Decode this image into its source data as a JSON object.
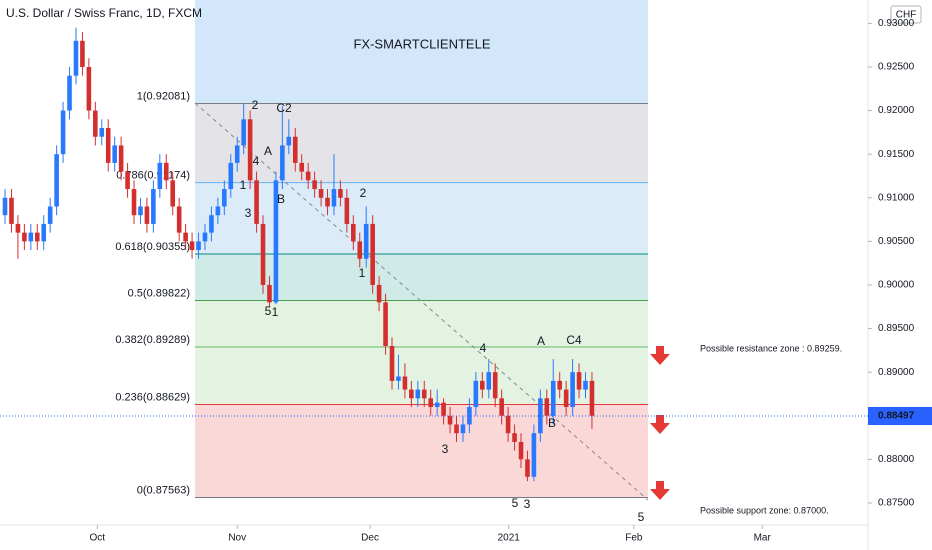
{
  "chart_data": {
    "type": "candlestick",
    "title": "U.S. Dollar / Swiss Franc, 1D, FXCM",
    "watermark": "FX-SMARTCLIENTELE",
    "currency": "CHF",
    "colors": {
      "up": "#2979ff",
      "down": "#d32f2f"
    },
    "candles": [
      [
        0.908,
        0.911,
        0.907,
        0.91
      ],
      [
        0.91,
        0.911,
        0.906,
        0.907
      ],
      [
        0.907,
        0.908,
        0.903,
        0.906
      ],
      [
        0.906,
        0.907,
        0.904,
        0.905
      ],
      [
        0.905,
        0.907,
        0.904,
        0.906
      ],
      [
        0.906,
        0.907,
        0.904,
        0.905
      ],
      [
        0.905,
        0.908,
        0.904,
        0.907
      ],
      [
        0.907,
        0.91,
        0.906,
        0.909
      ],
      [
        0.909,
        0.916,
        0.908,
        0.915
      ],
      [
        0.915,
        0.921,
        0.914,
        0.92
      ],
      [
        0.92,
        0.925,
        0.919,
        0.924
      ],
      [
        0.924,
        0.9295,
        0.923,
        0.928
      ],
      [
        0.928,
        0.929,
        0.924,
        0.925
      ],
      [
        0.925,
        0.926,
        0.919,
        0.92
      ],
      [
        0.92,
        0.921,
        0.916,
        0.917
      ],
      [
        0.917,
        0.919,
        0.916,
        0.918
      ],
      [
        0.918,
        0.919,
        0.913,
        0.914
      ],
      [
        0.914,
        0.917,
        0.913,
        0.916
      ],
      [
        0.916,
        0.917,
        0.912,
        0.913
      ],
      [
        0.913,
        0.914,
        0.91,
        0.911
      ],
      [
        0.911,
        0.912,
        0.907,
        0.908
      ],
      [
        0.908,
        0.91,
        0.907,
        0.909
      ],
      [
        0.909,
        0.91,
        0.906,
        0.907
      ],
      [
        0.907,
        0.912,
        0.906,
        0.911
      ],
      [
        0.911,
        0.915,
        0.91,
        0.914
      ],
      [
        0.914,
        0.915,
        0.911,
        0.912
      ],
      [
        0.912,
        0.913,
        0.908,
        0.909
      ],
      [
        0.909,
        0.91,
        0.905,
        0.906
      ],
      [
        0.906,
        0.907,
        0.904,
        0.905
      ],
      [
        0.905,
        0.906,
        0.903,
        0.904
      ],
      [
        0.904,
        0.906,
        0.903,
        0.905
      ],
      [
        0.905,
        0.907,
        0.904,
        0.906
      ],
      [
        0.906,
        0.909,
        0.905,
        0.908
      ],
      [
        0.908,
        0.91,
        0.907,
        0.909
      ],
      [
        0.909,
        0.912,
        0.908,
        0.911
      ],
      [
        0.911,
        0.915,
        0.91,
        0.914
      ],
      [
        0.914,
        0.917,
        0.913,
        0.916
      ],
      [
        0.916,
        0.9208,
        0.915,
        0.919
      ],
      [
        0.919,
        0.92,
        0.911,
        0.912
      ],
      [
        0.912,
        0.913,
        0.906,
        0.907
      ],
      [
        0.907,
        0.908,
        0.899,
        0.9
      ],
      [
        0.9,
        0.901,
        0.8975,
        0.898
      ],
      [
        0.898,
        0.913,
        0.8978,
        0.912
      ],
      [
        0.912,
        0.9205,
        0.911,
        0.916
      ],
      [
        0.916,
        0.919,
        0.915,
        0.917
      ],
      [
        0.917,
        0.918,
        0.913,
        0.914
      ],
      [
        0.914,
        0.915,
        0.912,
        0.913
      ],
      [
        0.913,
        0.914,
        0.911,
        0.912
      ],
      [
        0.912,
        0.913,
        0.91,
        0.911
      ],
      [
        0.911,
        0.912,
        0.909,
        0.91
      ],
      [
        0.91,
        0.911,
        0.908,
        0.909
      ],
      [
        0.909,
        0.915,
        0.908,
        0.911
      ],
      [
        0.911,
        0.912,
        0.909,
        0.91
      ],
      [
        0.91,
        0.911,
        0.906,
        0.907
      ],
      [
        0.907,
        0.908,
        0.904,
        0.905
      ],
      [
        0.905,
        0.906,
        0.902,
        0.903
      ],
      [
        0.903,
        0.909,
        0.902,
        0.907
      ],
      [
        0.907,
        0.908,
        0.899,
        0.9
      ],
      [
        0.9,
        0.901,
        0.897,
        0.898
      ],
      [
        0.898,
        0.899,
        0.892,
        0.893
      ],
      [
        0.893,
        0.894,
        0.888,
        0.889
      ],
      [
        0.889,
        0.892,
        0.888,
        0.8895
      ],
      [
        0.8895,
        0.891,
        0.887,
        0.888
      ],
      [
        0.888,
        0.889,
        0.886,
        0.887
      ],
      [
        0.887,
        0.889,
        0.886,
        0.888
      ],
      [
        0.888,
        0.889,
        0.886,
        0.887
      ],
      [
        0.887,
        0.888,
        0.885,
        0.886
      ],
      [
        0.886,
        0.888,
        0.885,
        0.8865
      ],
      [
        0.8865,
        0.887,
        0.884,
        0.885
      ],
      [
        0.885,
        0.886,
        0.883,
        0.884
      ],
      [
        0.884,
        0.885,
        0.882,
        0.883
      ],
      [
        0.883,
        0.885,
        0.882,
        0.884
      ],
      [
        0.884,
        0.887,
        0.883,
        0.886
      ],
      [
        0.886,
        0.89,
        0.885,
        0.889
      ],
      [
        0.889,
        0.89,
        0.887,
        0.888
      ],
      [
        0.888,
        0.8915,
        0.887,
        0.89
      ],
      [
        0.89,
        0.891,
        0.886,
        0.887
      ],
      [
        0.887,
        0.888,
        0.884,
        0.885
      ],
      [
        0.885,
        0.886,
        0.882,
        0.883
      ],
      [
        0.883,
        0.884,
        0.881,
        0.882
      ],
      [
        0.882,
        0.883,
        0.879,
        0.88
      ],
      [
        0.88,
        0.881,
        0.8775,
        0.878
      ],
      [
        0.878,
        0.884,
        0.8775,
        0.883
      ],
      [
        0.883,
        0.888,
        0.882,
        0.887
      ],
      [
        0.887,
        0.888,
        0.884,
        0.885
      ],
      [
        0.885,
        0.8915,
        0.884,
        0.889
      ],
      [
        0.889,
        0.89,
        0.887,
        0.888
      ],
      [
        0.888,
        0.889,
        0.885,
        0.886
      ],
      [
        0.886,
        0.8915,
        0.885,
        0.89
      ],
      [
        0.89,
        0.891,
        0.887,
        0.888
      ],
      [
        0.888,
        0.89,
        0.887,
        0.889
      ],
      [
        0.889,
        0.89,
        0.8835,
        0.885
      ]
    ],
    "xlim": [
      -0.78,
      133.8
    ],
    "xticks": [
      {
        "value": 14.3,
        "label": "Oct"
      },
      {
        "value": 36,
        "label": "Nov"
      },
      {
        "value": 56.6,
        "label": "Dec"
      },
      {
        "value": 78.1,
        "label": "2021"
      },
      {
        "value": 97.5,
        "label": "Feb"
      },
      {
        "value": 117.4,
        "label": "Mar"
      }
    ],
    "ylim": [
      0.87247,
      0.93268
    ],
    "yticks": [
      {
        "value": 0.93,
        "label": "0.93000"
      },
      {
        "value": 0.925,
        "label": "0.92500"
      },
      {
        "value": 0.92,
        "label": "0.92000"
      },
      {
        "value": 0.915,
        "label": "0.91500"
      },
      {
        "value": 0.91,
        "label": "0.91000"
      },
      {
        "value": 0.905,
        "label": "0.90500"
      },
      {
        "value": 0.9,
        "label": "0.90000"
      },
      {
        "value": 0.895,
        "label": "0.89500"
      },
      {
        "value": 0.89,
        "label": "0.89000"
      },
      {
        "value": 0.885,
        "label": "0.88500"
      },
      {
        "value": 0.88,
        "label": "0.88000"
      },
      {
        "value": 0.875,
        "label": "0.87500"
      }
    ],
    "current_price": {
      "value": 0.88497,
      "label": "0.88497"
    },
    "fib_top_fill": "#d3e7fb",
    "fib_levels": [
      {
        "value": 0.92081,
        "label": "1(0.92081)",
        "color": "#787b86",
        "fill": "#e4e4e8"
      },
      {
        "value": 0.91174,
        "label": "0.786(0.91174)",
        "color": "#64b5f6",
        "fill": "#dcebf8"
      },
      {
        "value": 0.90355,
        "label": "0.618(0.90355)",
        "color": "#00897b",
        "fill": "#d0eae8"
      },
      {
        "value": 0.89822,
        "label": "0.5(0.89822)",
        "color": "#43a047",
        "fill": "#e3f2e1"
      },
      {
        "value": 0.89289,
        "label": "0.382(0.89289)",
        "color": "#66bb6a",
        "fill": "#e3f2e1"
      },
      {
        "value": 0.88629,
        "label": "0.236(0.88629)",
        "color": "#e53935",
        "fill": "#fad8d8"
      },
      {
        "value": 0.87563,
        "label": "0(0.87563)",
        "color": "#787b86",
        "fill": null
      }
    ],
    "wave_labels": [
      {
        "text": "2",
        "color": "#e53935"
      },
      {
        "text": "C2",
        "color": "#131722"
      },
      {
        "text": "A",
        "color": "#131722"
      },
      {
        "text": "4",
        "color": "#e53935"
      },
      {
        "text": "1",
        "color": "#e53935"
      },
      {
        "text": "3",
        "color": "#e53935"
      },
      {
        "text": "B",
        "color": "#131722"
      },
      {
        "text": "5",
        "color": "#e53935"
      },
      {
        "text": "1",
        "color": "#131722"
      },
      {
        "text": "2",
        "color": "#e53935"
      },
      {
        "text": "1",
        "color": "#e53935"
      },
      {
        "text": "4",
        "color": "#e53935"
      },
      {
        "text": "3",
        "color": "#e53935"
      },
      {
        "text": "A",
        "color": "#131722"
      },
      {
        "text": "C4",
        "color": "#131722"
      },
      {
        "text": "B",
        "color": "#131722"
      },
      {
        "text": "5",
        "color": "#e53935"
      },
      {
        "text": "3",
        "color": "#131722"
      },
      {
        "text": "5",
        "color": "#131722"
      }
    ],
    "annotations": [
      "Possible resistance zone : 0.89259.",
      "Possible support zone: 0.87000."
    ]
  }
}
